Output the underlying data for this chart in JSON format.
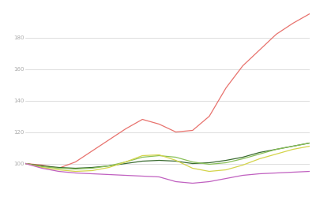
{
  "background_color": "#ffffff",
  "grid_color": "#d0d0d0",
  "yticks": [
    100,
    120,
    140,
    160,
    180
  ],
  "ylim": [
    85,
    200
  ],
  "xlim": [
    0,
    17
  ],
  "series": {
    "red": {
      "color": "#e8726d",
      "y": [
        100,
        99,
        97,
        101,
        108,
        115,
        122,
        128,
        125,
        120,
        121,
        130,
        148,
        162,
        172,
        182,
        189,
        195
      ]
    },
    "dark_green": {
      "color": "#3a6b30",
      "y": [
        100,
        98.5,
        97.5,
        97,
        97.5,
        98.5,
        100,
        101.5,
        102,
        101.5,
        100,
        100.5,
        102,
        104,
        107,
        109,
        111,
        113
      ]
    },
    "light_green": {
      "color": "#88c057",
      "y": [
        100,
        98,
        97,
        96.5,
        97,
        98.5,
        101,
        104,
        105,
        104,
        101,
        99.5,
        100.5,
        103,
        106,
        109,
        111,
        113
      ]
    },
    "yellow": {
      "color": "#d4d44a",
      "y": [
        100,
        97.5,
        96,
        95,
        95.5,
        97.5,
        101,
        105,
        105.5,
        102,
        97,
        95,
        96,
        99,
        103,
        106,
        109,
        111
      ]
    },
    "purple": {
      "color": "#c060c0",
      "y": [
        100,
        97,
        95,
        94,
        93.5,
        93,
        92.5,
        92,
        91.5,
        88.5,
        87.5,
        88.5,
        90.5,
        92.5,
        93.5,
        94,
        94.5,
        95
      ]
    }
  }
}
